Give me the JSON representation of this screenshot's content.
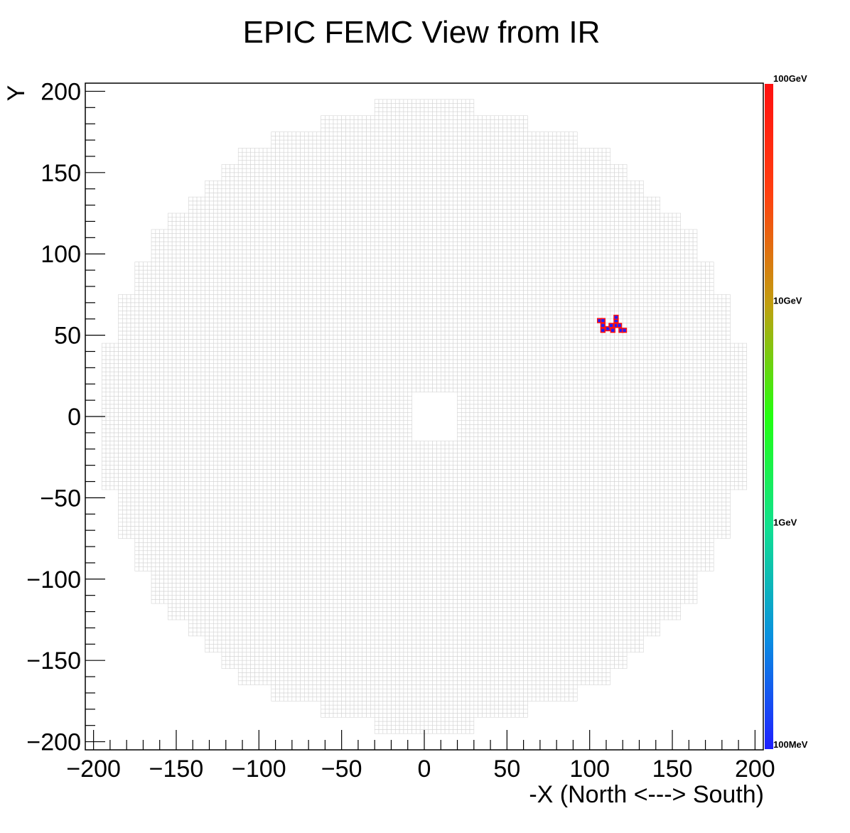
{
  "chart_data": {
    "type": "heatmap",
    "title": "EPIC FEMC View from IR",
    "xlabel": "-X (North <---> South)",
    "ylabel": "Y",
    "xlim": [
      -205,
      205
    ],
    "ylim": [
      -205,
      205
    ],
    "xticks": [
      -200,
      -150,
      -100,
      -50,
      0,
      50,
      100,
      150,
      200
    ],
    "yticks": [
      -200,
      -150,
      -100,
      -50,
      0,
      50,
      100,
      150,
      200
    ],
    "xtick_labels": [
      "−200",
      "−150",
      "−100",
      "−50",
      "0",
      "50",
      "100",
      "150",
      "200"
    ],
    "ytick_labels": [
      "−200",
      "−150",
      "−100",
      "−50",
      "0",
      "50",
      "100",
      "150",
      "200"
    ],
    "colorbar": {
      "scale": "log",
      "labels": [
        "100GeV",
        "10GeV",
        "1GeV",
        "100MeV"
      ],
      "colors": [
        "#1f1fff",
        "#0a8fe0",
        "#10e090",
        "#22ff10",
        "#c0a010",
        "#ff4010",
        "#ff1010"
      ]
    },
    "detector": {
      "cell_size": 2.5,
      "beam_hole": {
        "x": [
          -8,
          20
        ],
        "y": [
          -15,
          15
        ]
      },
      "half_width_profile": [
        {
          "y_abs": 195,
          "xmin": -31,
          "xmax": 31
        },
        {
          "y_abs": 185,
          "xmin": -62,
          "xmax": 62
        },
        {
          "y_abs": 175,
          "xmin": -92,
          "xmax": 92
        },
        {
          "y_abs": 165,
          "xmin": -113,
          "xmax": 113
        },
        {
          "y_abs": 155,
          "xmin": -123,
          "xmax": 123
        },
        {
          "y_abs": 145,
          "xmin": -133,
          "xmax": 133
        },
        {
          "y_abs": 135,
          "xmin": -143,
          "xmax": 143
        },
        {
          "y_abs": 125,
          "xmin": -154,
          "xmax": 154
        },
        {
          "y_abs": 115,
          "xmin": -164,
          "xmax": 164
        },
        {
          "y_abs": 105,
          "xmin": -164,
          "xmax": 164
        },
        {
          "y_abs": 95,
          "xmin": -174,
          "xmax": 174
        },
        {
          "y_abs": 85,
          "xmin": -174,
          "xmax": 174
        },
        {
          "y_abs": 75,
          "xmin": -184,
          "xmax": 184
        },
        {
          "y_abs": 65,
          "xmin": -184,
          "xmax": 184
        },
        {
          "y_abs": 55,
          "xmin": -184,
          "xmax": 184
        },
        {
          "y_abs": 45,
          "xmin": -195,
          "xmax": 195
        },
        {
          "y_abs": 0,
          "xmin": -195,
          "xmax": 195
        }
      ]
    },
    "hits": [
      {
        "x": 106,
        "y": 59,
        "energy": "low"
      },
      {
        "x": 108,
        "y": 59,
        "energy": "low"
      },
      {
        "x": 108,
        "y": 56,
        "energy": "low"
      },
      {
        "x": 108,
        "y": 53,
        "energy": "low"
      },
      {
        "x": 111,
        "y": 54,
        "energy": "low"
      },
      {
        "x": 113,
        "y": 56,
        "energy": "low"
      },
      {
        "x": 114,
        "y": 53,
        "energy": "low"
      },
      {
        "x": 116,
        "y": 56,
        "energy": "low"
      },
      {
        "x": 116,
        "y": 59,
        "energy": "low"
      },
      {
        "x": 116,
        "y": 61,
        "energy": "low"
      },
      {
        "x": 118,
        "y": 56,
        "energy": "low"
      },
      {
        "x": 119,
        "y": 53,
        "energy": "low"
      },
      {
        "x": 121,
        "y": 53,
        "energy": "low"
      }
    ]
  }
}
